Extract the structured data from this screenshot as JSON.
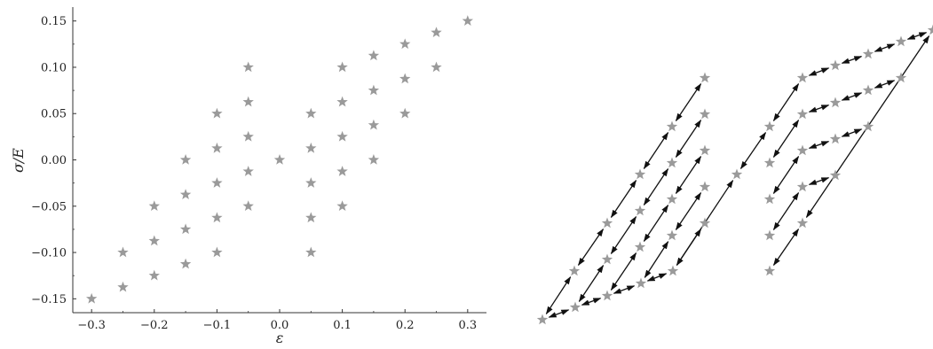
{
  "chart_data": [
    {
      "type": "scatter",
      "xlabel": "ε",
      "ylabel": "σ/E",
      "xlim": [
        -0.33,
        0.33
      ],
      "ylim": [
        -0.165,
        0.165
      ],
      "xticks": [
        -0.3,
        -0.2,
        -0.1,
        0.0,
        0.1,
        0.2,
        0.3
      ],
      "xtick_labels": [
        "−0.3",
        "−0.2",
        "−0.1",
        "0.0",
        "0.1",
        "0.2",
        "0.3"
      ],
      "yticks": [
        -0.15,
        -0.1,
        -0.05,
        0.0,
        0.05,
        0.1,
        0.15
      ],
      "ytick_labels": [
        "−0.15",
        "−0.10",
        "−0.05",
        "0.00",
        "0.05",
        "0.10",
        "0.15"
      ],
      "marker": "star",
      "marker_color": "#9a9a9a",
      "grid": false,
      "series": [
        {
          "points": [
            [
              -0.3,
              -0.15
            ],
            [
              -0.25,
              -0.1
            ],
            [
              -0.25,
              -0.1375
            ],
            [
              -0.2,
              -0.05
            ],
            [
              -0.2,
              -0.0875
            ],
            [
              -0.2,
              -0.125
            ],
            [
              -0.15,
              0.0
            ],
            [
              -0.15,
              -0.0375
            ],
            [
              -0.15,
              -0.075
            ],
            [
              -0.15,
              -0.1125
            ],
            [
              -0.1,
              0.05
            ],
            [
              -0.1,
              0.0125
            ],
            [
              -0.1,
              -0.025
            ],
            [
              -0.1,
              -0.0625
            ],
            [
              -0.1,
              -0.1
            ],
            [
              -0.05,
              0.1
            ],
            [
              -0.05,
              0.0625
            ],
            [
              -0.05,
              0.025
            ],
            [
              -0.05,
              -0.0125
            ],
            [
              -0.05,
              -0.05
            ],
            [
              0.0,
              0.0
            ],
            [
              0.05,
              0.05
            ],
            [
              0.05,
              0.0125
            ],
            [
              0.05,
              -0.025
            ],
            [
              0.05,
              -0.0625
            ],
            [
              0.05,
              -0.1
            ],
            [
              0.1,
              0.1
            ],
            [
              0.1,
              0.0625
            ],
            [
              0.1,
              0.025
            ],
            [
              0.1,
              -0.0125
            ],
            [
              0.1,
              -0.05
            ],
            [
              0.15,
              0.1125
            ],
            [
              0.15,
              0.075
            ],
            [
              0.15,
              0.0375
            ],
            [
              0.15,
              0.0
            ],
            [
              0.2,
              0.125
            ],
            [
              0.2,
              0.0875
            ],
            [
              0.2,
              0.05
            ],
            [
              0.25,
              0.1375
            ],
            [
              0.25,
              0.1
            ],
            [
              0.3,
              0.15
            ]
          ]
        }
      ]
    },
    {
      "type": "diagram",
      "marker": "star",
      "marker_color": "#9a9a9a",
      "arrow_color": "#111111",
      "arrowheads": "both",
      "connections": "adjacent stress–strain states of the same hysteresis loops, linked by double-headed arrows"
    }
  ]
}
